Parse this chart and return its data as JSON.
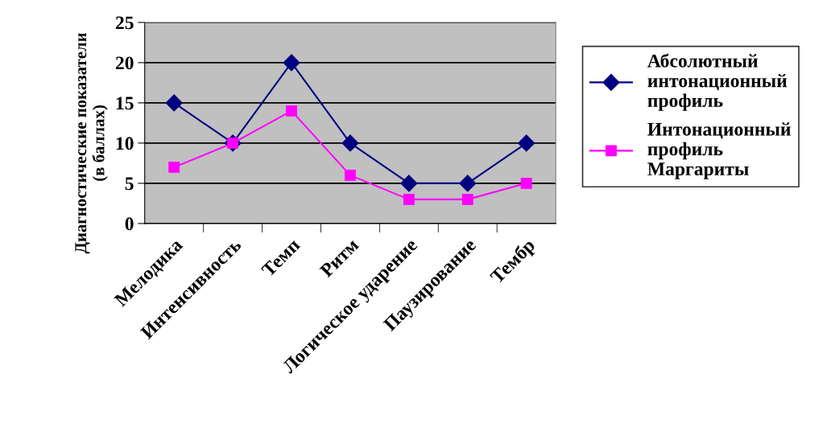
{
  "chart_data": {
    "type": "line",
    "ylabel": "Диагностические показатели\n(в баллах)",
    "categories": [
      "Мелодика",
      "Интенсивность",
      "Темп",
      "Ритм",
      "Логическое ударение",
      "Паузирование",
      "Тембр"
    ],
    "series": [
      {
        "name": "Абсолютный\nинтонационный\nпрофиль",
        "color": "#000080",
        "marker": "diamond",
        "values": [
          15,
          10,
          20,
          10,
          5,
          5,
          10
        ]
      },
      {
        "name": "Интонационный\nпрофиль\nМаргариты",
        "color": "#ff00ff",
        "marker": "square",
        "values": [
          7,
          10,
          14,
          6,
          3,
          3,
          5
        ]
      }
    ],
    "ylim": [
      0,
      25
    ],
    "yticks": [
      0,
      5,
      10,
      15,
      20,
      25
    ],
    "grid": "y",
    "legend": "right",
    "line_style": "solid"
  }
}
